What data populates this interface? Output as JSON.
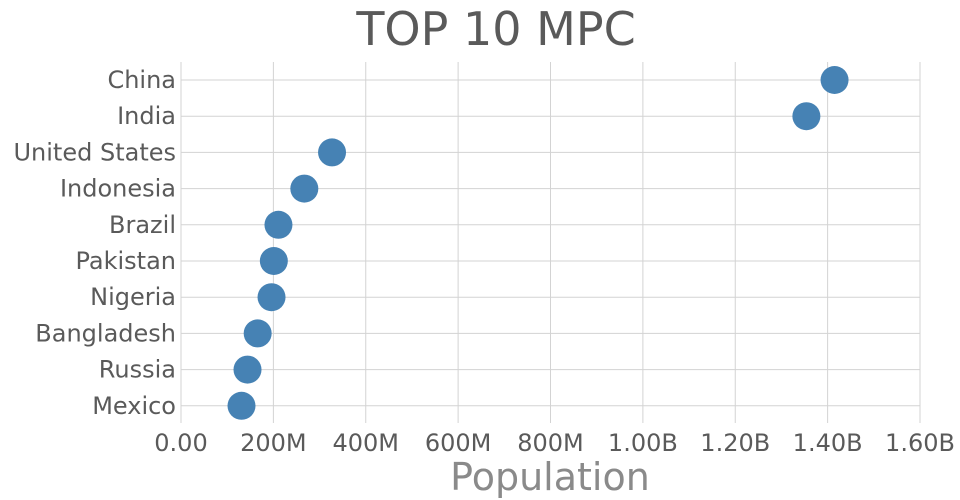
{
  "chart_data": {
    "type": "scatter",
    "title": "TOP 10 MPC",
    "xlabel": "Population",
    "ylabel": "",
    "xlim": [
      0,
      1600000000
    ],
    "x_ticks": [
      0,
      200000000,
      400000000,
      600000000,
      800000000,
      1000000000,
      1200000000,
      1400000000,
      1600000000
    ],
    "x_tick_labels": [
      "0.00",
      "200M",
      "400M",
      "600M",
      "800M",
      "1.00B",
      "1.20B",
      "1.40B",
      "1.60B"
    ],
    "grid": true,
    "marker_color": "#4682b4",
    "categories": [
      "China",
      "India",
      "United States",
      "Indonesia",
      "Brazil",
      "Pakistan",
      "Nigeria",
      "Bangladesh",
      "Russia",
      "Mexico"
    ],
    "values": [
      1415000000,
      1354000000,
      327000000,
      267000000,
      211000000,
      201000000,
      196000000,
      166000000,
      144000000,
      131000000
    ]
  }
}
